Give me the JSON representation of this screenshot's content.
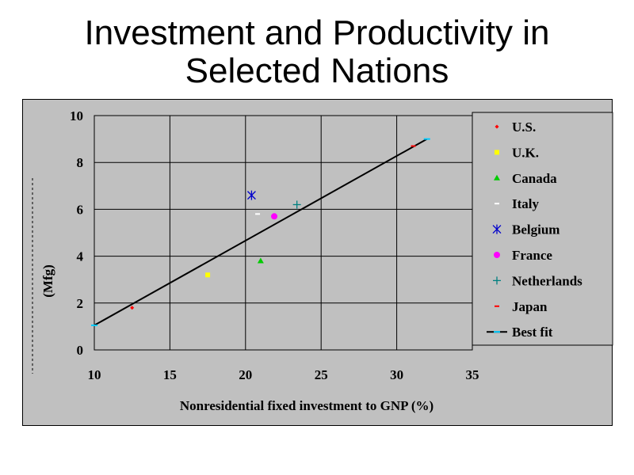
{
  "title": {
    "line1": "Investment and Productivity in",
    "line2": "Selected Nations"
  },
  "chart_data": {
    "type": "scatter",
    "xlabel": "Nonresidential fixed investment to GNP (%)",
    "ylabel": "(Mfg)",
    "xlim": [
      10,
      35
    ],
    "ylim": [
      0,
      10
    ],
    "x_ticks": [
      10,
      15,
      20,
      25,
      30,
      35
    ],
    "y_ticks": [
      0,
      2,
      4,
      6,
      8,
      10
    ],
    "grid": true,
    "legend_position": "right",
    "series": [
      {
        "name": "U.S.",
        "marker": "diamond",
        "color": "#ff0000",
        "points": [
          {
            "x": 12.5,
            "y": 1.8
          }
        ]
      },
      {
        "name": "U.K.",
        "marker": "square",
        "color": "#ffff00",
        "points": [
          {
            "x": 17.5,
            "y": 3.2
          }
        ]
      },
      {
        "name": "Canada",
        "marker": "triangle",
        "color": "#00cc00",
        "points": [
          {
            "x": 21,
            "y": 3.8
          }
        ]
      },
      {
        "name": "Italy",
        "marker": "dash",
        "color": "#ffffff",
        "points": [
          {
            "x": 20.8,
            "y": 5.8
          }
        ]
      },
      {
        "name": "Belgium",
        "marker": "asterisk",
        "color": "#0000cc",
        "points": [
          {
            "x": 20.4,
            "y": 6.6
          }
        ]
      },
      {
        "name": "France",
        "marker": "circle",
        "color": "#ff00ff",
        "points": [
          {
            "x": 21.9,
            "y": 5.7
          }
        ]
      },
      {
        "name": "Netherlands",
        "marker": "plus",
        "color": "#008080",
        "points": [
          {
            "x": 23.4,
            "y": 6.2
          }
        ]
      },
      {
        "name": "Japan",
        "marker": "dash",
        "color": "#ff0000",
        "points": [
          {
            "x": 31.1,
            "y": 8.7
          }
        ]
      }
    ],
    "best_fit": {
      "name": "Best fit",
      "line_color": "#000000",
      "marker_color": "#00ccff",
      "points": [
        {
          "x": 10,
          "y": 1.05
        },
        {
          "x": 32,
          "y": 9.0
        }
      ]
    }
  }
}
